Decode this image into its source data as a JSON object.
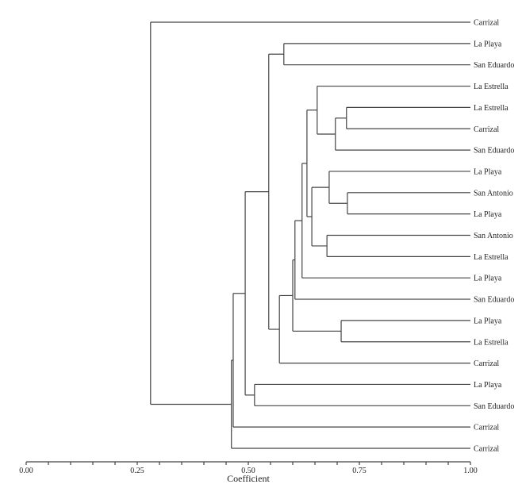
{
  "chart_data": {
    "type": "dendrogram",
    "xlabel": "Coefficient",
    "xlim": [
      0,
      1
    ],
    "major_ticks": [
      "0.00",
      "0.25",
      "0.50",
      "0.75",
      "1.00"
    ],
    "minor_tick_step": 0.05,
    "leaves": [
      "Carrizal",
      "La Playa",
      "San Eduardo",
      "La Estrella",
      "La Estrella",
      "Carrizal",
      "San Eduardo",
      "La Playa",
      "San Antonio",
      "La Playa",
      "San  Antonio",
      "La Estrella",
      "La Playa",
      "San Eduardo",
      "La Playa",
      "La Estrella",
      "Carrizal",
      "La Playa",
      "San Eduardo",
      "Carrizal",
      "Carrizal"
    ],
    "tree": {
      "h": 0.28,
      "c": [
        0,
        {
          "h": 0.462,
          "c": [
            {
              "h": 0.466,
              "c": [
                {
                  "h": 0.493,
                  "c": [
                    {
                      "h": 0.546,
                      "c": [
                        {
                          "h": 0.58,
                          "c": [
                            1,
                            2
                          ]
                        },
                        {
                          "h": 0.57,
                          "c": [
                            {
                              "h": 0.6,
                              "c": [
                                {
                                  "h": 0.605,
                                  "c": [
                                    {
                                      "h": 0.621,
                                      "c": [
                                        {
                                          "h": 0.632,
                                          "c": [
                                            {
                                              "h": 0.655,
                                              "c": [
                                                3,
                                                {
                                                  "h": 0.696,
                                                  "c": [
                                                    {
                                                      "h": 0.721,
                                                      "c": [
                                                        4,
                                                        5
                                                      ]
                                                    },
                                                    6
                                                  ]
                                                }
                                              ]
                                            },
                                            {
                                              "h": 0.643,
                                              "c": [
                                                {
                                                  "h": 0.682,
                                                  "c": [
                                                    7,
                                                    {
                                                      "h": 0.723,
                                                      "c": [
                                                        8,
                                                        9
                                                      ]
                                                    }
                                                  ]
                                                },
                                                {
                                                  "h": 0.677,
                                                  "c": [
                                                    10,
                                                    11
                                                  ]
                                                }
                                              ]
                                            }
                                          ]
                                        },
                                        12
                                      ]
                                    },
                                    13
                                  ]
                                },
                                {
                                  "h": 0.709,
                                  "c": [
                                    14,
                                    15
                                  ]
                                }
                              ]
                            },
                            16
                          ]
                        }
                      ]
                    },
                    {
                      "h": 0.514,
                      "c": [
                        17,
                        18
                      ]
                    }
                  ]
                },
                19
              ]
            },
            20
          ]
        }
      ]
    }
  }
}
